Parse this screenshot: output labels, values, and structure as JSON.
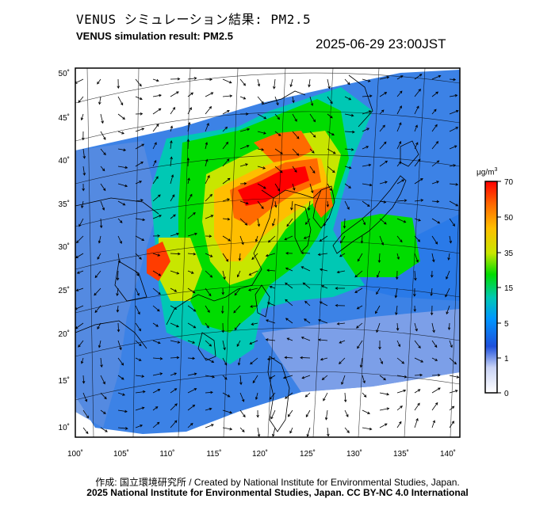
{
  "header": {
    "title_jp": "VENUS シミュレーション結果: PM2.5",
    "title_en": "VENUS simulation result: PM2.5",
    "timestamp": "2025-06-29 23:00JST"
  },
  "map": {
    "lat_labels": [
      "50˚",
      "45˚",
      "40˚",
      "35˚",
      "30˚",
      "25˚",
      "20˚",
      "15˚",
      "10˚"
    ],
    "lon_labels": [
      "100˚",
      "105˚",
      "110˚",
      "115˚",
      "120˚",
      "125˚",
      "130˚",
      "135˚",
      "140˚"
    ]
  },
  "colorbar": {
    "unit_base": "μg/m",
    "unit_exp": "3",
    "ticks": [
      "70",
      "50",
      "35",
      "15",
      "5",
      "1",
      "0"
    ],
    "colors": [
      "#ff0000",
      "#ff6a00",
      "#ffbe00",
      "#c8e600",
      "#00dc00",
      "#00c8b4",
      "#0096ff",
      "#1e50dc",
      "#ffffff"
    ]
  },
  "credits": {
    "line1": "作成: 国立環境研究所 / Created by National Institute for Environmental Studies, Japan.",
    "line2": "2025 National Institute for Environmental Studies, Japan. CC BY-NC 4.0 International"
  }
}
